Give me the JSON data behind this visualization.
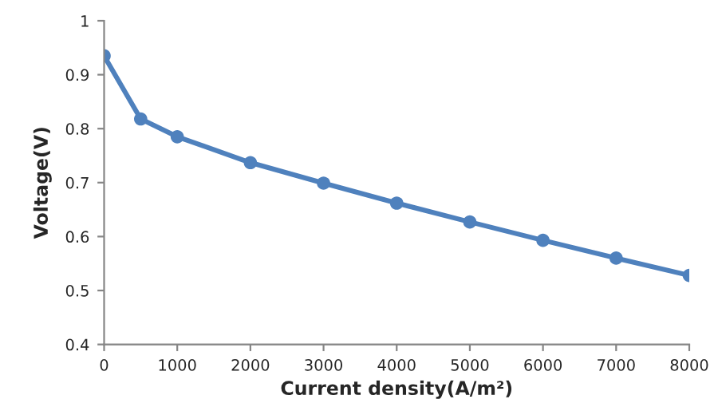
{
  "chart_data": {
    "type": "line",
    "xlabel": "Current density(A/m²)",
    "ylabel": "Voltage(V)",
    "x": [
      0,
      500,
      1000,
      2000,
      3000,
      4000,
      5000,
      6000,
      7000,
      8000
    ],
    "series": [
      {
        "color": "#4f81bd",
        "values": [
          0.935,
          0.818,
          0.785,
          0.737,
          0.699,
          0.662,
          0.627,
          0.593,
          0.56,
          0.528
        ]
      }
    ],
    "xlim": [
      0,
      8000
    ],
    "xticks": [
      0,
      1000,
      2000,
      3000,
      4000,
      5000,
      6000,
      7000,
      8000
    ],
    "ylim": [
      0.4,
      1
    ],
    "yticks": [
      0.4,
      0.5,
      0.6,
      0.7,
      0.8,
      0.9,
      1
    ],
    "marker": "circle",
    "line_style": "solid",
    "grid": false,
    "legend": false
  }
}
